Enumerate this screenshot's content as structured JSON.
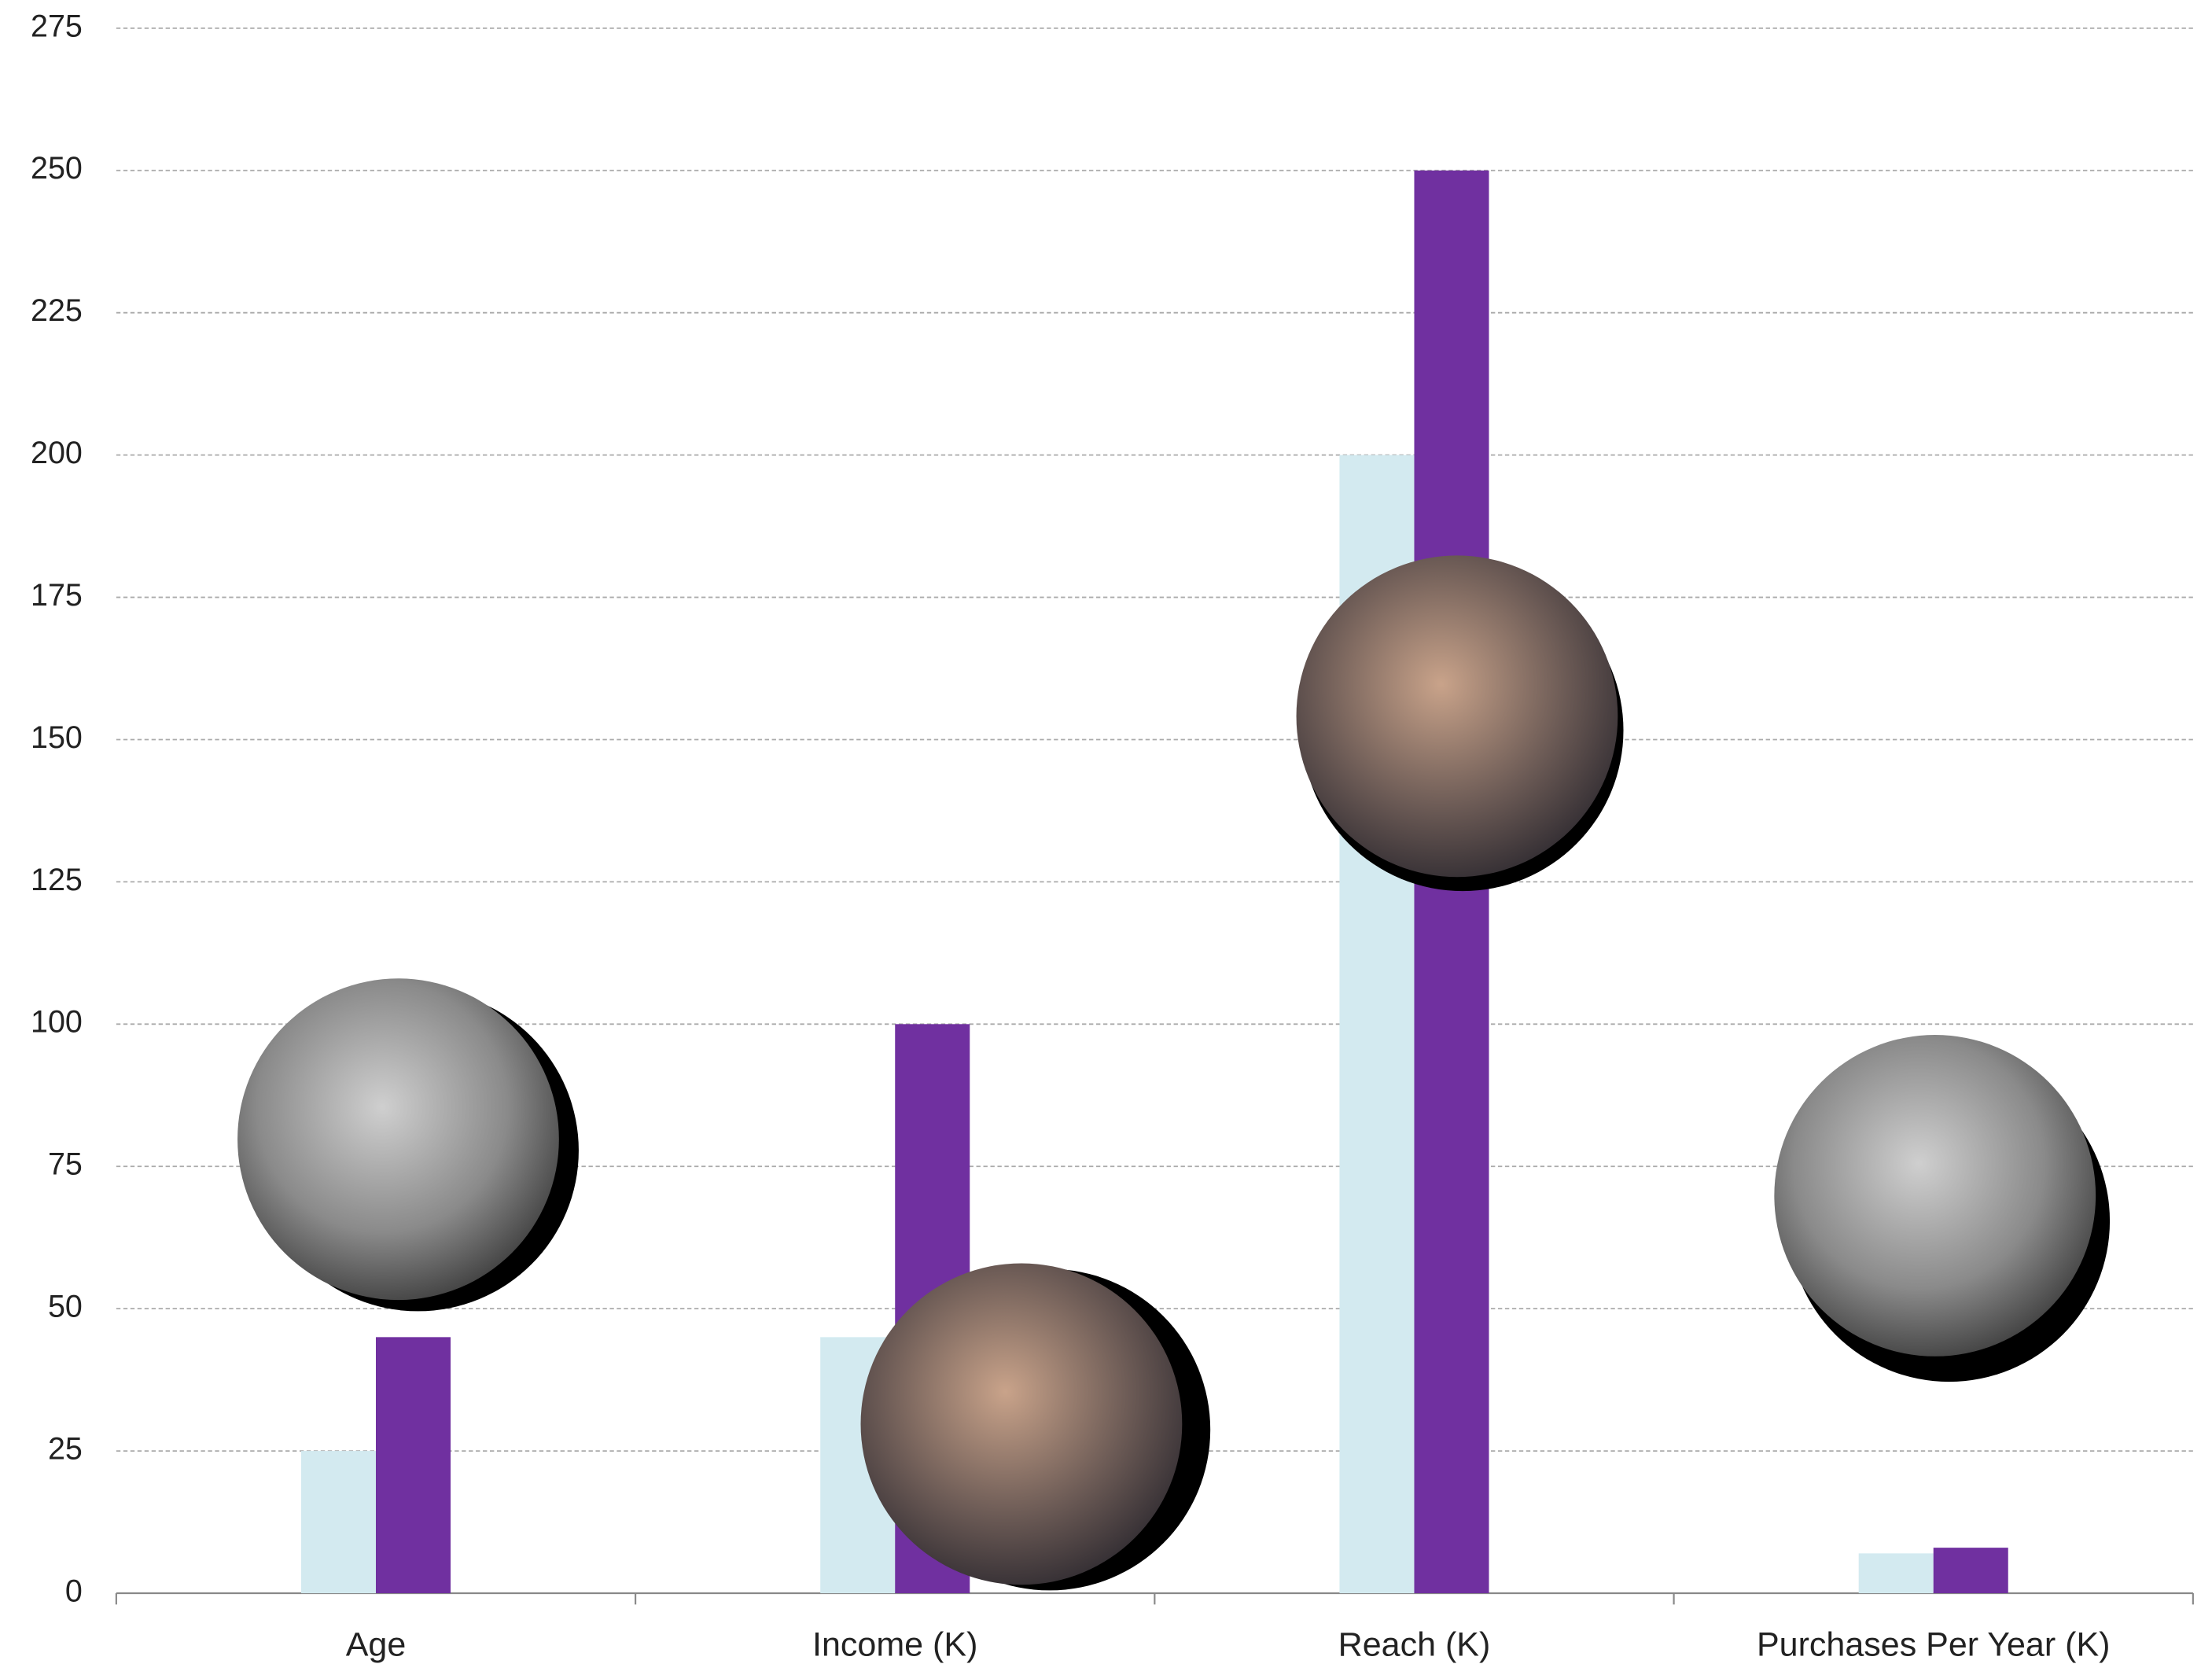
{
  "chart_data": {
    "type": "bar",
    "categories": [
      "Age",
      "Income (K)",
      "Reach (K)",
      "Purchases Per Year (K)"
    ],
    "series": [
      {
        "color": "#d3eaf0",
        "values": [
          25,
          45,
          200,
          7
        ]
      },
      {
        "color": "#7030a0",
        "values": [
          45,
          100,
          250,
          8
        ]
      }
    ],
    "ylim": [
      0,
      275
    ],
    "yticks": [
      0,
      25,
      50,
      75,
      100,
      125,
      150,
      175,
      200,
      225,
      250,
      275
    ],
    "grid": true
  }
}
